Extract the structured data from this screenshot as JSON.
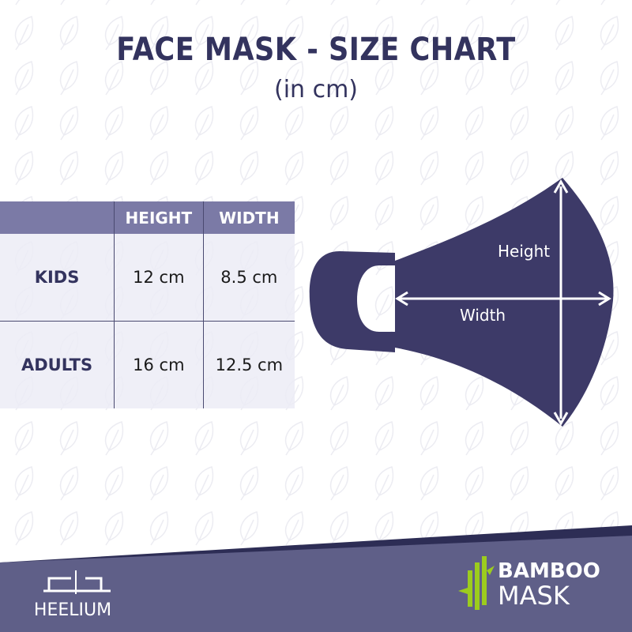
{
  "title": "FACE  MASK - SIZE CHART",
  "subtitle": "(in cm)",
  "table": {
    "headers": [
      "",
      "HEIGHT",
      "WIDTH"
    ],
    "rows": [
      {
        "label": "KIDS",
        "height": "12 cm",
        "width": "8.5 cm"
      },
      {
        "label": "ADULTS",
        "height": "16 cm",
        "width": "12.5 cm"
      }
    ]
  },
  "diagram": {
    "height_label": "Height",
    "width_label": "Width"
  },
  "brands": {
    "left": "HEELIUM",
    "right_line1": "BAMBOO",
    "right_line2": "MASK"
  },
  "colors": {
    "primary": "#33335e",
    "header": "#7b7aa6",
    "footer": "#5f5f88",
    "mask": "#3d3a68",
    "bamboo": "#9ccc1e"
  }
}
